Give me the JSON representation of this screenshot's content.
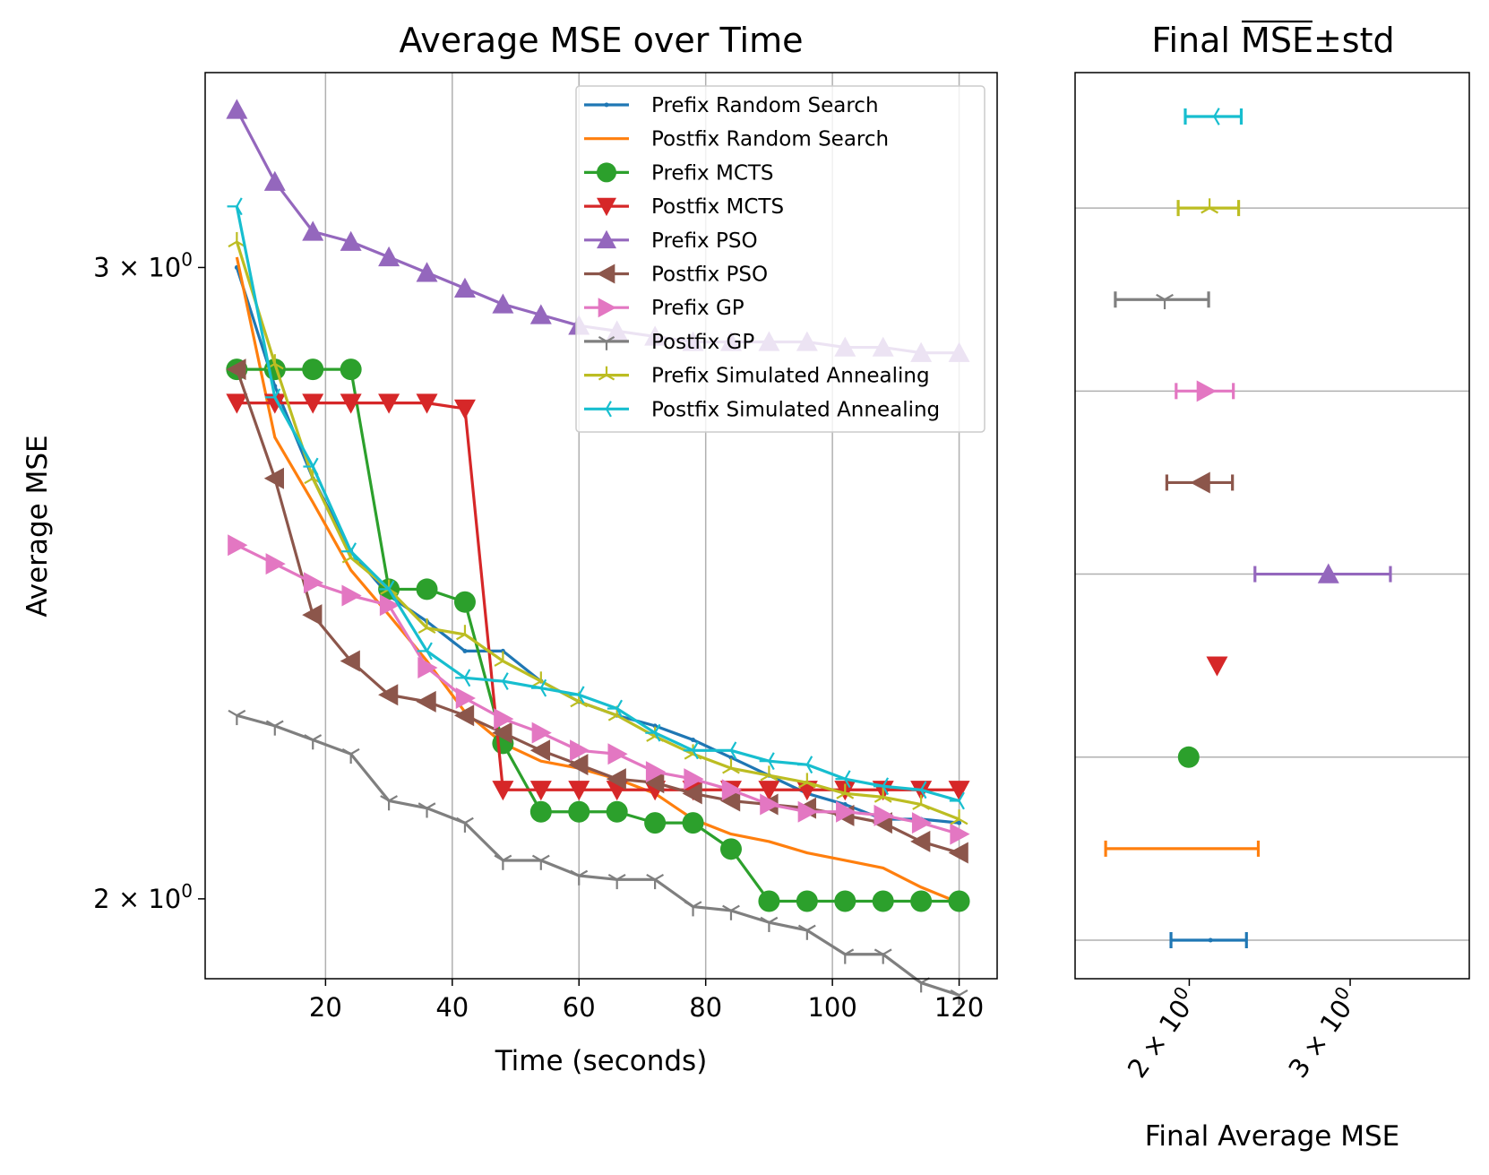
{
  "chart_data": [
    {
      "type": "line",
      "title": "Average MSE over Time",
      "xlabel": "Time (seconds)",
      "ylabel": "Average MSE",
      "xlim": [
        1,
        126
      ],
      "ylim": [
        1.9,
        3.4
      ],
      "yscale": "log",
      "grid": "x",
      "legend_position": "top-right",
      "x_ticks": [
        20,
        40,
        60,
        80,
        100,
        120
      ],
      "y_ticks": [
        {
          "value": 3,
          "mantissa": "3",
          "exponent": "0"
        },
        {
          "value": 2,
          "mantissa": "2",
          "exponent": "0"
        }
      ],
      "x": [
        6,
        12,
        18,
        24,
        30,
        36,
        42,
        48,
        54,
        60,
        66,
        72,
        78,
        84,
        90,
        96,
        102,
        108,
        114,
        120
      ],
      "series": [
        {
          "name": "Prefix Random Search",
          "color": "#1f77b4",
          "marker": "point",
          "values": [
            3.0,
            2.78,
            2.62,
            2.5,
            2.43,
            2.39,
            2.345,
            2.345,
            2.3,
            2.27,
            2.25,
            2.235,
            2.215,
            2.19,
            2.165,
            2.14,
            2.125,
            2.105,
            2.105,
            2.1
          ]
        },
        {
          "name": "Postfix Random Search",
          "color": "#ff7f0e",
          "marker": "none",
          "values": [
            3.02,
            2.69,
            2.58,
            2.47,
            2.4,
            2.33,
            2.255,
            2.21,
            2.185,
            2.175,
            2.16,
            2.14,
            2.105,
            2.085,
            2.075,
            2.06,
            2.05,
            2.04,
            2.015,
            1.995
          ]
        },
        {
          "name": "Prefix MCTS",
          "color": "#2ca02c",
          "marker": "circle",
          "values": [
            2.81,
            2.81,
            2.81,
            2.81,
            2.44,
            2.44,
            2.42,
            2.21,
            2.115,
            2.115,
            2.115,
            2.1,
            2.1,
            2.065,
            1.997,
            1.997,
            1.997,
            1.997,
            1.997,
            1.997
          ]
        },
        {
          "name": "Postfix MCTS",
          "color": "#d62728",
          "marker": "triangle_down",
          "values": [
            2.75,
            2.75,
            2.75,
            2.75,
            2.75,
            2.75,
            2.74,
            2.145,
            2.145,
            2.145,
            2.145,
            2.145,
            2.145,
            2.145,
            2.145,
            2.145,
            2.145,
            2.145,
            2.145,
            2.145
          ]
        },
        {
          "name": "Prefix PSO",
          "color": "#9467bd",
          "marker": "triangle_up",
          "values": [
            3.32,
            3.17,
            3.07,
            3.05,
            3.02,
            2.99,
            2.96,
            2.93,
            2.91,
            2.89,
            2.88,
            2.87,
            2.86,
            2.86,
            2.86,
            2.86,
            2.85,
            2.85,
            2.84,
            2.84
          ]
        },
        {
          "name": "Postfix PSO",
          "color": "#8c564b",
          "marker": "triangle_left",
          "values": [
            2.81,
            2.62,
            2.4,
            2.33,
            2.28,
            2.27,
            2.25,
            2.225,
            2.2,
            2.18,
            2.16,
            2.155,
            2.14,
            2.13,
            2.125,
            2.12,
            2.11,
            2.1,
            2.075,
            2.06
          ]
        },
        {
          "name": "Prefix GP",
          "color": "#e377c2",
          "marker": "triangle_right",
          "values": [
            2.51,
            2.48,
            2.45,
            2.43,
            2.415,
            2.32,
            2.275,
            2.245,
            2.225,
            2.2,
            2.195,
            2.17,
            2.16,
            2.145,
            2.125,
            2.115,
            2.115,
            2.11,
            2.1,
            2.085
          ]
        },
        {
          "name": "Postfix GP",
          "color": "#7f7f7f",
          "marker": "tri_down",
          "values": [
            2.25,
            2.235,
            2.215,
            2.195,
            2.13,
            2.12,
            2.1,
            2.05,
            2.05,
            2.03,
            2.025,
            2.025,
            1.99,
            1.985,
            1.97,
            1.96,
            1.93,
            1.93,
            1.895,
            1.88
          ]
        },
        {
          "name": "Prefix Simulated Annealing",
          "color": "#bcbd22",
          "marker": "tri_up",
          "values": [
            3.05,
            2.82,
            2.62,
            2.49,
            2.44,
            2.38,
            2.37,
            2.33,
            2.3,
            2.27,
            2.25,
            2.22,
            2.195,
            2.175,
            2.165,
            2.155,
            2.14,
            2.135,
            2.125,
            2.105
          ]
        },
        {
          "name": "Postfix Simulated Annealing",
          "color": "#17becf",
          "marker": "tri_left",
          "values": [
            3.12,
            2.76,
            2.64,
            2.5,
            2.44,
            2.345,
            2.305,
            2.3,
            2.29,
            2.28,
            2.26,
            2.225,
            2.2,
            2.2,
            2.185,
            2.18,
            2.16,
            2.15,
            2.145,
            2.13
          ]
        }
      ]
    },
    {
      "type": "errorbar",
      "title_prefix": "Final ",
      "title_overline": "MSE",
      "title_suffix": "±std",
      "xlabel": "Final Average MSE",
      "xlim": [
        1.5,
        4.05
      ],
      "xscale": "log",
      "grid": "y",
      "x_ticks": [
        {
          "value": 2,
          "mantissa": "2",
          "exponent": "0"
        },
        {
          "value": 3,
          "mantissa": "3",
          "exponent": "0"
        }
      ],
      "rows": [
        {
          "name": "Prefix Random Search",
          "color": "#1f77b4",
          "marker": "point",
          "mean": 2.11,
          "std": 0.2
        },
        {
          "name": "Postfix Random Search",
          "color": "#ff7f0e",
          "marker": "none",
          "mean": 2.0,
          "std": 0.38
        },
        {
          "name": "Prefix MCTS",
          "color": "#2ca02c",
          "marker": "circle",
          "mean": 1.997,
          "std": 0
        },
        {
          "name": "Postfix MCTS",
          "color": "#d62728",
          "marker": "triangle_down",
          "mean": 2.145,
          "std": 0
        },
        {
          "name": "Prefix PSO",
          "color": "#9467bd",
          "marker": "triangle_up",
          "mean": 2.84,
          "std": 0.48
        },
        {
          "name": "Postfix PSO",
          "color": "#8c564b",
          "marker": "triangle_left",
          "mean": 2.06,
          "std": 0.17
        },
        {
          "name": "Prefix GP",
          "color": "#e377c2",
          "marker": "triangle_right",
          "mean": 2.085,
          "std": 0.15
        },
        {
          "name": "Postfix GP",
          "color": "#7f7f7f",
          "marker": "tri_down",
          "mean": 1.88,
          "std": 0.22
        },
        {
          "name": "Prefix Simulated Annealing",
          "color": "#bcbd22",
          "marker": "tri_up",
          "mean": 2.105,
          "std": 0.16
        },
        {
          "name": "Postfix Simulated Annealing",
          "color": "#17becf",
          "marker": "tri_left",
          "mean": 2.13,
          "std": 0.15
        }
      ]
    }
  ]
}
